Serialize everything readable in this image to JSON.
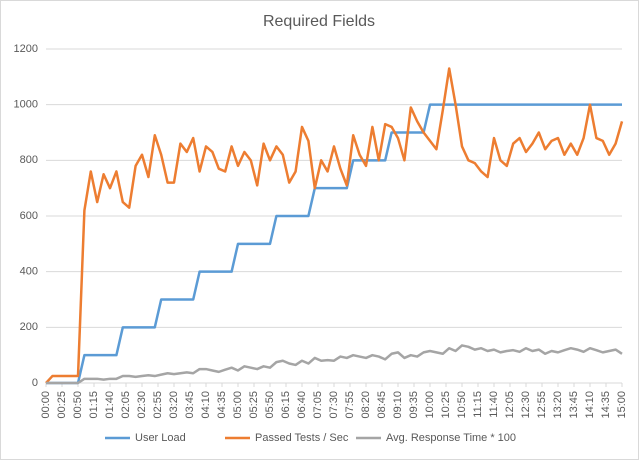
{
  "chart_data": {
    "type": "line",
    "title": "Required Fields",
    "x": [
      0,
      10,
      20,
      30,
      40,
      50,
      60,
      70,
      80,
      90,
      100,
      110,
      120,
      130,
      140,
      150,
      160,
      170,
      180,
      190,
      200,
      210,
      220,
      230,
      240,
      250,
      260,
      270,
      280,
      290,
      300,
      310,
      320,
      330,
      340,
      350,
      360,
      370,
      380,
      390,
      400,
      410,
      420,
      430,
      440,
      450,
      460,
      470,
      480,
      490,
      500,
      510,
      520,
      530,
      540,
      550,
      560,
      570,
      580,
      590,
      600,
      610,
      620,
      630,
      640,
      650,
      660,
      670,
      680,
      690,
      700,
      710,
      720,
      730,
      740,
      750,
      760,
      770,
      780,
      790,
      800,
      810,
      820,
      830,
      840,
      850,
      860,
      870,
      880,
      890,
      900
    ],
    "xlim": [
      0,
      900
    ],
    "xticks": [
      {
        "value": 0,
        "label": "00:00"
      },
      {
        "value": 25,
        "label": "00:25"
      },
      {
        "value": 50,
        "label": "00:50"
      },
      {
        "value": 75,
        "label": "01:15"
      },
      {
        "value": 100,
        "label": "01:40"
      },
      {
        "value": 125,
        "label": "02:05"
      },
      {
        "value": 150,
        "label": "02:30"
      },
      {
        "value": 175,
        "label": "02:55"
      },
      {
        "value": 200,
        "label": "03:20"
      },
      {
        "value": 225,
        "label": "03:45"
      },
      {
        "value": 250,
        "label": "04:10"
      },
      {
        "value": 275,
        "label": "04:35"
      },
      {
        "value": 300,
        "label": "05:00"
      },
      {
        "value": 325,
        "label": "05:25"
      },
      {
        "value": 350,
        "label": "05:50"
      },
      {
        "value": 375,
        "label": "06:15"
      },
      {
        "value": 400,
        "label": "06:40"
      },
      {
        "value": 425,
        "label": "07:05"
      },
      {
        "value": 450,
        "label": "07:30"
      },
      {
        "value": 475,
        "label": "07:55"
      },
      {
        "value": 500,
        "label": "08:20"
      },
      {
        "value": 525,
        "label": "08:45"
      },
      {
        "value": 550,
        "label": "09:10"
      },
      {
        "value": 575,
        "label": "09:35"
      },
      {
        "value": 600,
        "label": "10:00"
      },
      {
        "value": 625,
        "label": "10:25"
      },
      {
        "value": 650,
        "label": "10:50"
      },
      {
        "value": 675,
        "label": "11:15"
      },
      {
        "value": 700,
        "label": "11:40"
      },
      {
        "value": 725,
        "label": "12:05"
      },
      {
        "value": 750,
        "label": "12:30"
      },
      {
        "value": 775,
        "label": "12:55"
      },
      {
        "value": 800,
        "label": "13:20"
      },
      {
        "value": 825,
        "label": "13:45"
      },
      {
        "value": 850,
        "label": "14:10"
      },
      {
        "value": 875,
        "label": "14:35"
      },
      {
        "value": 900,
        "label": "15:00"
      }
    ],
    "ylim": [
      0,
      1200
    ],
    "yticks": [
      0,
      200,
      400,
      600,
      800,
      1000,
      1200
    ],
    "grid": true,
    "legend": "bottom",
    "series": [
      {
        "name": "User Load",
        "color": "#5b9bd5",
        "values": [
          0,
          0,
          0,
          0,
          0,
          0,
          100,
          100,
          100,
          100,
          100,
          100,
          200,
          200,
          200,
          200,
          200,
          200,
          300,
          300,
          300,
          300,
          300,
          300,
          400,
          400,
          400,
          400,
          400,
          400,
          500,
          500,
          500,
          500,
          500,
          500,
          600,
          600,
          600,
          600,
          600,
          600,
          700,
          700,
          700,
          700,
          700,
          700,
          800,
          800,
          800,
          800,
          800,
          800,
          900,
          900,
          900,
          900,
          900,
          900,
          1000,
          1000,
          1000,
          1000,
          1000,
          1000,
          1000,
          1000,
          1000,
          1000,
          1000,
          1000,
          1000,
          1000,
          1000,
          1000,
          1000,
          1000,
          1000,
          1000,
          1000,
          1000,
          1000,
          1000,
          1000,
          1000,
          1000,
          1000,
          1000,
          1000,
          1000
        ]
      },
      {
        "name": "Passed Tests / Sec",
        "color": "#ed7d31",
        "values": [
          0,
          25,
          25,
          25,
          25,
          25,
          620,
          760,
          650,
          750,
          700,
          760,
          650,
          630,
          780,
          820,
          740,
          890,
          820,
          720,
          720,
          860,
          830,
          880,
          760,
          850,
          830,
          770,
          760,
          850,
          780,
          830,
          800,
          710,
          860,
          800,
          850,
          820,
          720,
          760,
          920,
          870,
          700,
          800,
          760,
          850,
          770,
          710,
          890,
          820,
          780,
          920,
          800,
          930,
          920,
          880,
          800,
          990,
          940,
          900,
          870,
          840,
          980,
          1130,
          1000,
          850,
          800,
          790,
          760,
          740,
          880,
          800,
          780,
          860,
          880,
          830,
          860,
          900,
          840,
          870,
          880,
          820,
          860,
          820,
          880,
          1000,
          880,
          870,
          820,
          860,
          940
        ]
      },
      {
        "name": "Avg. Response Time * 100",
        "color": "#a5a5a5",
        "values": [
          0,
          0,
          0,
          0,
          0,
          0,
          15,
          15,
          15,
          12,
          15,
          15,
          25,
          25,
          22,
          25,
          28,
          25,
          30,
          35,
          32,
          35,
          38,
          35,
          50,
          50,
          45,
          40,
          48,
          55,
          45,
          60,
          55,
          50,
          60,
          55,
          75,
          80,
          70,
          65,
          80,
          70,
          90,
          80,
          82,
          80,
          95,
          90,
          100,
          95,
          90,
          100,
          95,
          85,
          105,
          110,
          90,
          100,
          95,
          110,
          115,
          110,
          105,
          125,
          115,
          135,
          130,
          120,
          125,
          115,
          120,
          110,
          115,
          118,
          112,
          125,
          115,
          120,
          105,
          115,
          110,
          118,
          125,
          120,
          112,
          125,
          118,
          110,
          115,
          120,
          105
        ]
      }
    ]
  }
}
